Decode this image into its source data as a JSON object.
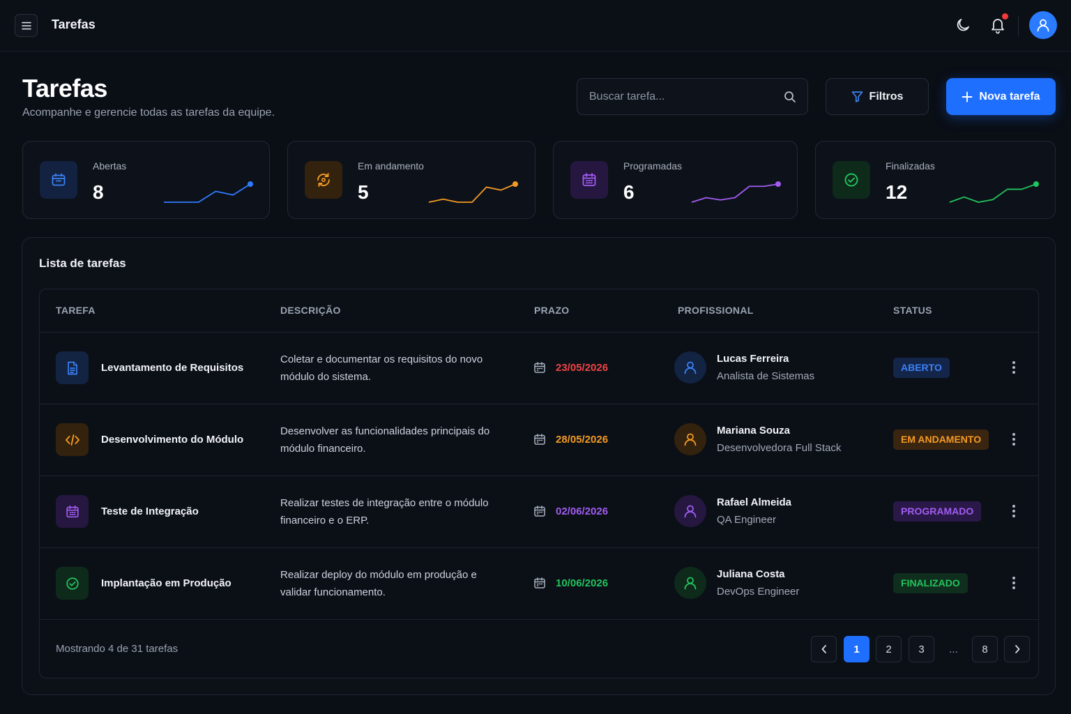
{
  "topbar": {
    "title": "Tarefas",
    "menu_icon": "hamburger-icon",
    "theme_icon": "moon-icon",
    "notifications_icon": "bell-icon",
    "avatar_icon": "user-icon"
  },
  "header": {
    "title": "Tarefas",
    "subtitle": "Acompanhe e gerencie todas as tarefas da equipe.",
    "search_placeholder": "Buscar tarefa...",
    "filter_label": "Filtros",
    "new_label": "Nova tarefa"
  },
  "stats": [
    {
      "label": "Abertas",
      "value": "8",
      "color": "#2f7bff",
      "trend": [
        2,
        2,
        2,
        5,
        4,
        7
      ]
    },
    {
      "label": "Em andamento",
      "value": "5",
      "color": "#f59a23",
      "trend": [
        3,
        4,
        3,
        3,
        8,
        7,
        9
      ]
    },
    {
      "label": "Programadas",
      "value": "6",
      "color": "#a25cf2",
      "trend": [
        2,
        4,
        3,
        4,
        9,
        9,
        10
      ]
    },
    {
      "label": "Finalizadas",
      "value": "12",
      "color": "#22c55e",
      "trend": [
        2,
        4,
        2,
        3,
        7,
        7,
        9
      ]
    }
  ],
  "list": {
    "title": "Lista de tarefas",
    "columns": [
      "TAREFA",
      "DESCRIÇÃO",
      "PRAZO",
      "PROFISSIONAL",
      "STATUS"
    ],
    "rows": [
      {
        "task": "Levantamento de Requisitos",
        "icon": "document-icon",
        "description": "Coletar e documentar os requisitos do novo módulo do sistema.",
        "due": "23/05/2026",
        "due_color": "#ef4444",
        "person": "Lucas Ferreira",
        "role": "Analista de Sistemas",
        "status": "ABERTO",
        "color": "#2f7bff"
      },
      {
        "task": "Desenvolvimento do Módulo",
        "icon": "code-icon",
        "description": "Desenvolver as funcionalidades principais do módulo financeiro.",
        "due": "28/05/2026",
        "due_color": "#f59a23",
        "person": "Mariana Souza",
        "role": "Desenvolvedora Full Stack",
        "status": "EM ANDAMENTO",
        "color": "#f59a23"
      },
      {
        "task": "Teste de Integração",
        "icon": "calendar-icon",
        "description": "Realizar testes de integração entre o módulo financeiro e o ERP.",
        "due": "02/06/2026",
        "due_color": "#a25cf2",
        "person": "Rafael Almeida",
        "role": "QA Engineer",
        "status": "PROGRAMADO",
        "color": "#a25cf2"
      },
      {
        "task": "Implantação em Produção",
        "icon": "check-circle-icon",
        "description": "Realizar deploy do módulo em produção e validar funcionamento.",
        "due": "10/06/2026",
        "due_color": "#22c55e",
        "person": "Juliana Costa",
        "role": "DevOps Engineer",
        "status": "FINALIZADO",
        "color": "#22c55e"
      }
    ],
    "footer": "Mostrando 4 de 31 tarefas",
    "pages": [
      "1",
      "2",
      "3",
      "...",
      "8"
    ],
    "current_page": "1"
  }
}
